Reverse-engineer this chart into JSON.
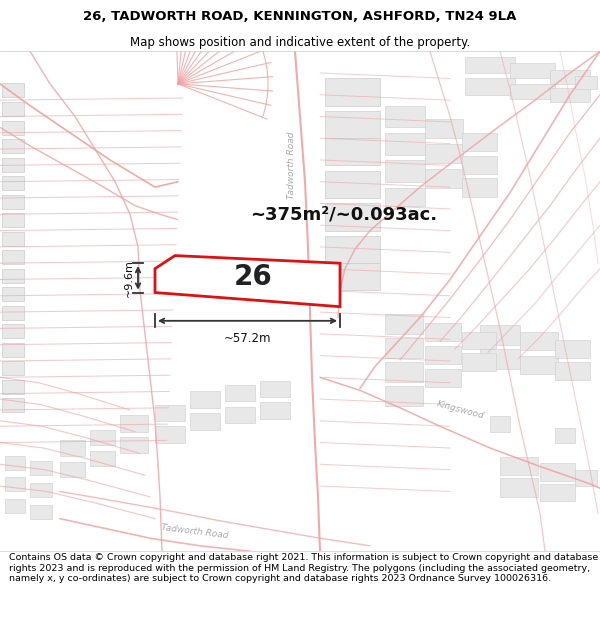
{
  "title_line1": "26, TADWORTH ROAD, KENNINGTON, ASHFORD, TN24 9LA",
  "title_line2": "Map shows position and indicative extent of the property.",
  "footer_text": "Contains OS data © Crown copyright and database right 2021. This information is subject to Crown copyright and database rights 2023 and is reproduced with the permission of HM Land Registry. The polygons (including the associated geometry, namely x, y co-ordinates) are subject to Crown copyright and database rights 2023 Ordnance Survey 100026316.",
  "area_text": "~375m²/~0.093ac.",
  "width_label": "~57.2m",
  "height_label": "~9.6m",
  "plot_number": "26",
  "map_bg": "#ffffff",
  "road_color": "#f0a0a0",
  "plot_fill": "#ffffff",
  "plot_border": "#dd1111",
  "street_label_tadworth_bottom": "Tadworth Road",
  "street_label_kingswood": "Kingswood",
  "street_label_tadworth_road_top": "Tadworth Road",
  "title_fontsize": 9.5,
  "subtitle_fontsize": 8.5,
  "footer_fontsize": 6.8
}
